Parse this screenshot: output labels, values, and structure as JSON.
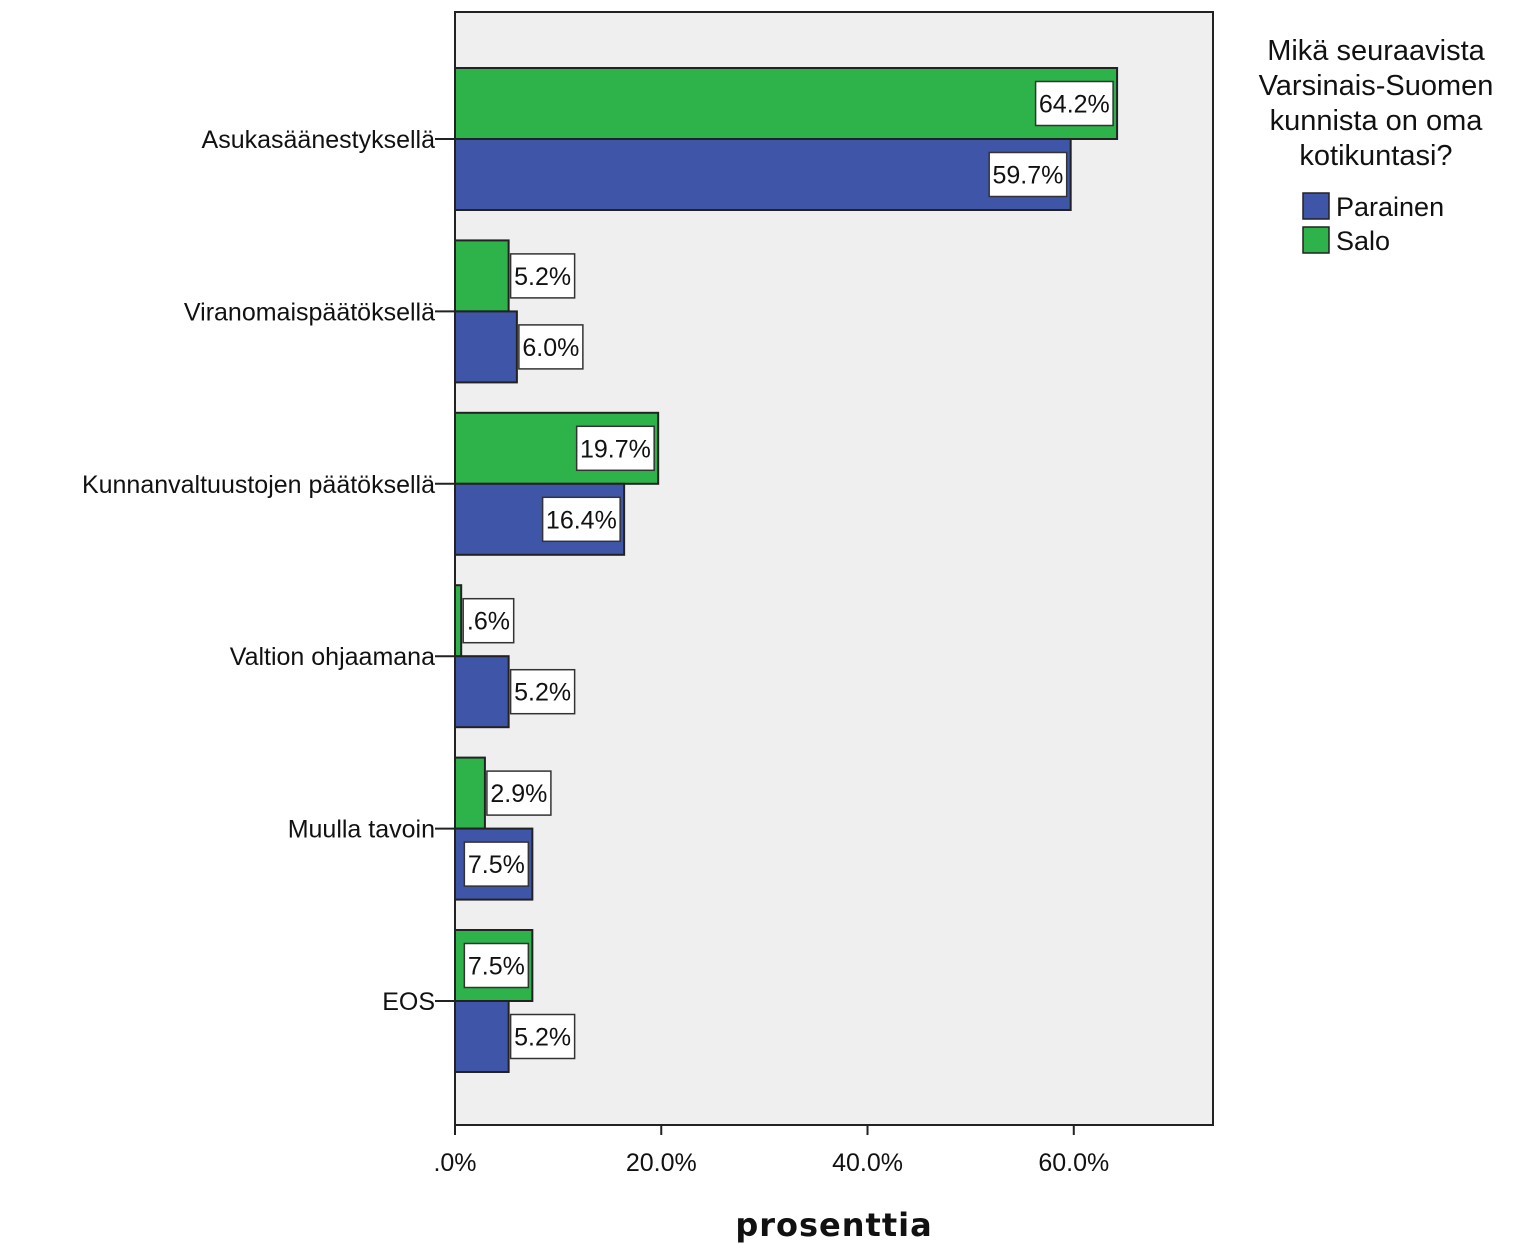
{
  "chart_data": {
    "type": "bar",
    "orientation": "horizontal",
    "categories": [
      "Asukasäänestyksellä",
      "Viranomaispäätöksellä",
      "Kunnanvaltuustojen päätöksellä",
      "Valtion ohjaamana",
      "Muulla tavoin",
      "EOS"
    ],
    "series": [
      {
        "name": "Salo",
        "color": "#2db34a",
        "values": [
          64.2,
          5.2,
          19.7,
          0.6,
          2.9,
          7.5
        ],
        "labels": [
          "64.2%",
          "5.2%",
          "19.7%",
          ".6%",
          "2.9%",
          "7.5%"
        ]
      },
      {
        "name": "Parainen",
        "color": "#3f55a8",
        "values": [
          59.7,
          6.0,
          16.4,
          5.2,
          7.5,
          5.2
        ],
        "labels": [
          "59.7%",
          "6.0%",
          "16.4%",
          "5.2%",
          "7.5%",
          "5.2%"
        ]
      }
    ],
    "xlabel": "prosenttia",
    "xlim": [
      0,
      73.5
    ],
    "xticks": [
      0,
      20,
      40,
      60
    ],
    "xtick_labels": [
      ".0%",
      "20.0%",
      "40.0%",
      "60.0%"
    ],
    "grid": false,
    "plot_background": "#efefef",
    "legend": {
      "title": [
        "Mikä seuraavista",
        "Varsinais-Suomen",
        "kunnista on oma",
        "kotikuntasi?"
      ],
      "entries": [
        {
          "name": "Parainen",
          "color": "#3f55a8"
        },
        {
          "name": "Salo",
          "color": "#2db34a"
        }
      ],
      "placement": "right"
    }
  }
}
